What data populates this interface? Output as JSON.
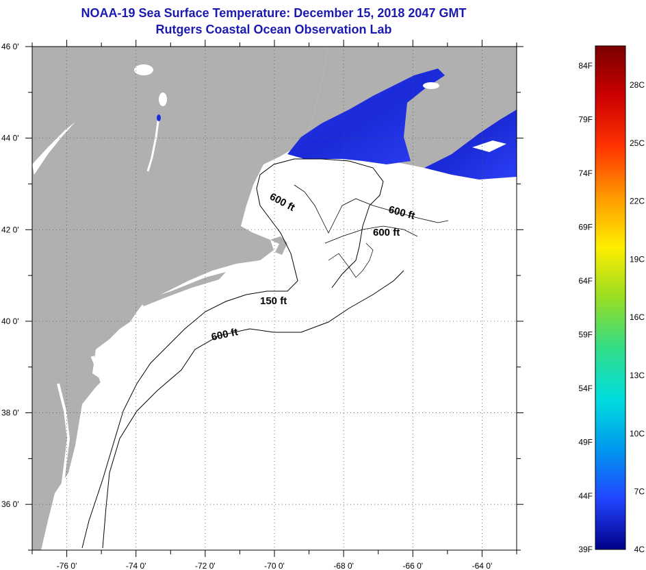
{
  "title": {
    "line1": "NOAA-19 Sea Surface Temperature:  December 15, 2018 2047 GMT",
    "line2": "Rutgers Coastal Ocean Observation Lab"
  },
  "axes": {
    "lat_labels": [
      "46 0'",
      "44 0'",
      "42 0'",
      "40 0'",
      "38 0'",
      "36 0'"
    ],
    "lat_values": [
      46,
      44,
      42,
      40,
      38,
      36
    ],
    "lon_labels": [
      "-76 0'",
      "-74 0'",
      "-72 0'",
      "-70 0'",
      "-68 0'",
      "-66 0'",
      "-64 0'"
    ],
    "lon_values": [
      -76,
      -74,
      -72,
      -70,
      -68,
      -66,
      -64
    ],
    "lat_range": [
      35,
      46
    ],
    "lon_range": [
      -77,
      -63
    ]
  },
  "contours": [
    {
      "label": "600 ft"
    },
    {
      "label": "600 ft"
    },
    {
      "label": "600 ft"
    },
    {
      "label": "150 ft"
    },
    {
      "label": "600 ft"
    }
  ],
  "colorbar": {
    "f_labels": [
      "84F",
      "79F",
      "74F",
      "69F",
      "64F",
      "59F",
      "54F",
      "49F",
      "44F",
      "39F"
    ],
    "c_labels": [
      "28C",
      "25C",
      "22C",
      "19C",
      "16C",
      "13C",
      "10C",
      "7C",
      "4C"
    ],
    "stops": [
      "#7a0000",
      "#cc0000",
      "#ff3300",
      "#ff9900",
      "#ffee00",
      "#99dd22",
      "#33dd88",
      "#00dddd",
      "#0099ee",
      "#2244ff",
      "#000088"
    ]
  },
  "colors": {
    "land": "#b0b0b0",
    "ocean": "#ffffff",
    "cold_water": "#1a2ee0",
    "title": "#1a1ab0"
  }
}
